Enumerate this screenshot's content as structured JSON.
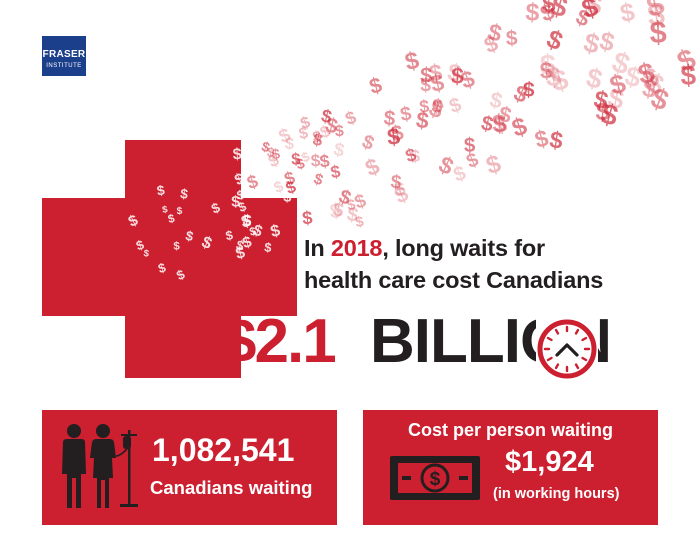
{
  "logo": {
    "line1": "FRASER",
    "line2": "INSTITUTE"
  },
  "headline": {
    "prefix": "In ",
    "year": "2018",
    "rest": ", long waits for",
    "line2": "health care cost Canadians"
  },
  "amount": {
    "value": "$2.1",
    "unit": "BILLION"
  },
  "left_box": {
    "count": "1,082,541",
    "label": "Canadians waiting"
  },
  "right_box": {
    "title": "Cost per person waiting",
    "value": "$1,924",
    "note": "(in working hours)"
  },
  "colors": {
    "brand_red": "#cc1f2f",
    "dark": "#231f20",
    "logo_blue": "#1c3f8c"
  },
  "icons": [
    "dollar-sign-icon",
    "clock-icon",
    "patients-icon",
    "money-bill-icon"
  ]
}
